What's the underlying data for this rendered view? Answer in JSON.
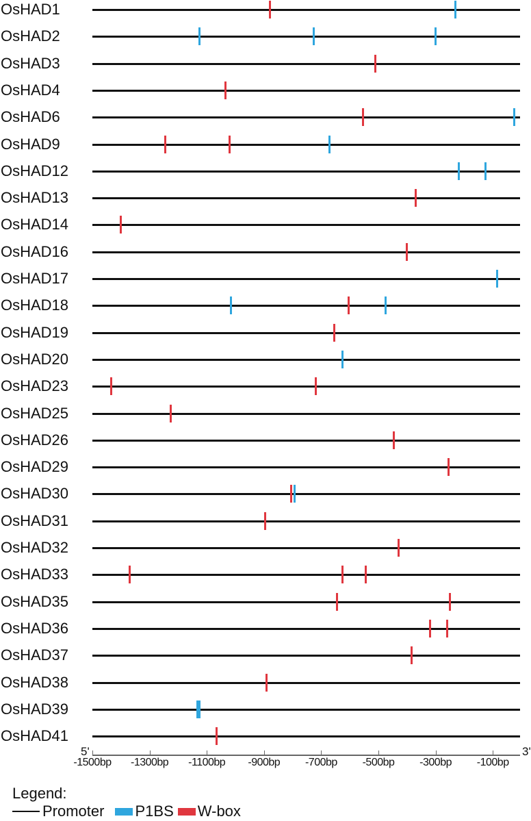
{
  "chart_data": {
    "type": "diagram",
    "title": "",
    "xlabel": "",
    "xlim": [
      -1500,
      0
    ],
    "x_ticks": [
      "-1500bp",
      "-1300bp",
      "-1100bp",
      "-900bp",
      "-700bp",
      "-500bp",
      "-300bp",
      "-100bp"
    ],
    "x_tick_values": [
      -1500,
      -1300,
      -1100,
      -900,
      -700,
      -500,
      -300,
      -100
    ],
    "end_labels": {
      "left": "5'",
      "right": "3'"
    },
    "legend": {
      "title": "Legend:",
      "items": [
        {
          "label": "Promoter",
          "color": "#111111",
          "shape": "line"
        },
        {
          "label": "P1BS",
          "color": "#2fa6de",
          "shape": "bar"
        },
        {
          "label": "W-box",
          "color": "#e0373f",
          "shape": "bar"
        }
      ]
    },
    "genes": [
      {
        "name": "OsHAD1",
        "elements": [
          {
            "type": "W-box",
            "pos": -880
          },
          {
            "type": "P1BS",
            "pos": -230
          }
        ]
      },
      {
        "name": "OsHAD2",
        "elements": [
          {
            "type": "P1BS",
            "pos": -1125
          },
          {
            "type": "P1BS",
            "pos": -725
          },
          {
            "type": "P1BS",
            "pos": -300
          }
        ]
      },
      {
        "name": "OsHAD3",
        "elements": [
          {
            "type": "W-box",
            "pos": -510
          }
        ]
      },
      {
        "name": "OsHAD4",
        "elements": [
          {
            "type": "W-box",
            "pos": -1035
          }
        ]
      },
      {
        "name": "OsHAD6",
        "elements": [
          {
            "type": "W-box",
            "pos": -555
          },
          {
            "type": "P1BS",
            "pos": -25
          }
        ]
      },
      {
        "name": "OsHAD9",
        "elements": [
          {
            "type": "W-box",
            "pos": -1245
          },
          {
            "type": "W-box",
            "pos": -1020
          },
          {
            "type": "P1BS",
            "pos": -670
          }
        ]
      },
      {
        "name": "OsHAD12",
        "elements": [
          {
            "type": "P1BS",
            "pos": -220
          },
          {
            "type": "P1BS",
            "pos": -125
          }
        ]
      },
      {
        "name": "OsHAD13",
        "elements": [
          {
            "type": "W-box",
            "pos": -370
          }
        ]
      },
      {
        "name": "OsHAD14",
        "elements": [
          {
            "type": "W-box",
            "pos": -1400
          }
        ]
      },
      {
        "name": "OsHAD16",
        "elements": [
          {
            "type": "W-box",
            "pos": -400
          }
        ]
      },
      {
        "name": "OsHAD17",
        "elements": [
          {
            "type": "P1BS",
            "pos": -85
          }
        ]
      },
      {
        "name": "OsHAD18",
        "elements": [
          {
            "type": "P1BS",
            "pos": -1015
          },
          {
            "type": "W-box",
            "pos": -605
          },
          {
            "type": "P1BS",
            "pos": -475
          }
        ]
      },
      {
        "name": "OsHAD19",
        "elements": [
          {
            "type": "W-box",
            "pos": -655
          }
        ]
      },
      {
        "name": "OsHAD20",
        "elements": [
          {
            "type": "P1BS",
            "pos": -625
          }
        ]
      },
      {
        "name": "OsHAD23",
        "elements": [
          {
            "type": "W-box",
            "pos": -1435
          },
          {
            "type": "W-box",
            "pos": -720
          }
        ]
      },
      {
        "name": "OsHAD25",
        "elements": [
          {
            "type": "W-box",
            "pos": -1225
          }
        ]
      },
      {
        "name": "OsHAD26",
        "elements": [
          {
            "type": "W-box",
            "pos": -445
          }
        ]
      },
      {
        "name": "OsHAD29",
        "elements": [
          {
            "type": "W-box",
            "pos": -255
          }
        ]
      },
      {
        "name": "OsHAD30",
        "elements": [
          {
            "type": "W-box",
            "pos": -805
          },
          {
            "type": "P1BS",
            "pos": -792
          }
        ]
      },
      {
        "name": "OsHAD31",
        "elements": [
          {
            "type": "W-box",
            "pos": -895
          }
        ]
      },
      {
        "name": "OsHAD32",
        "elements": [
          {
            "type": "W-box",
            "pos": -430
          }
        ]
      },
      {
        "name": "OsHAD33",
        "elements": [
          {
            "type": "W-box",
            "pos": -1370
          },
          {
            "type": "W-box",
            "pos": -625
          },
          {
            "type": "W-box",
            "pos": -545
          }
        ]
      },
      {
        "name": "OsHAD35",
        "elements": [
          {
            "type": "W-box",
            "pos": -645
          },
          {
            "type": "W-box",
            "pos": -250
          }
        ]
      },
      {
        "name": "OsHAD36",
        "elements": [
          {
            "type": "W-box",
            "pos": -320
          },
          {
            "type": "W-box",
            "pos": -260
          }
        ]
      },
      {
        "name": "OsHAD37",
        "elements": [
          {
            "type": "W-box",
            "pos": -385
          }
        ]
      },
      {
        "name": "OsHAD38",
        "elements": [
          {
            "type": "W-box",
            "pos": -890
          }
        ]
      },
      {
        "name": "OsHAD39",
        "elements": [
          {
            "type": "P1BS",
            "pos": -1130,
            "thick": true
          }
        ]
      },
      {
        "name": "OsHAD41",
        "elements": [
          {
            "type": "W-box",
            "pos": -1065
          }
        ]
      }
    ]
  },
  "axis": {
    "left_end": "5'",
    "right_end": "3'",
    "ticks": [
      "-1500bp",
      "-1300bp",
      "-1100bp",
      "-900bp",
      "-700bp",
      "-500bp",
      "-300bp",
      "-100bp"
    ]
  },
  "legend": {
    "title": "Legend:",
    "promoter": "Promoter",
    "p1bs": "P1BS",
    "wbox": "W-box"
  }
}
